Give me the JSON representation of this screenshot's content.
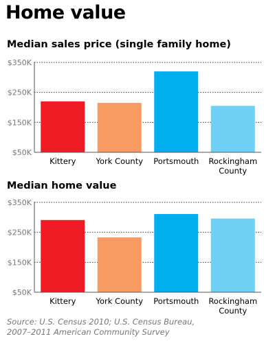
{
  "title": "Home value",
  "source": {
    "line1": "Source: U.S. Census 2010; U.S. Census Bureau,",
    "line2": "2007–2011 American Community Survey"
  },
  "chart_data": [
    {
      "type": "bar",
      "title": "Median sales price (single family home)",
      "categories": [
        [
          "Kittery"
        ],
        [
          "York County"
        ],
        [
          "Portsmouth"
        ],
        [
          "Rockingham",
          "County"
        ]
      ],
      "values": [
        220,
        215,
        320,
        205
      ],
      "colors": [
        "#ee1c25",
        "#f89a63",
        "#00aeef",
        "#70cff5"
      ],
      "ylim": [
        50,
        350
      ],
      "yticks": [
        50,
        150,
        250,
        350
      ],
      "ytick_labels": [
        "$50K",
        "$150K",
        "$250K",
        "$350K"
      ],
      "grid": true
    },
    {
      "type": "bar",
      "title": "Median home value",
      "categories": [
        [
          "Kittery"
        ],
        [
          "York County"
        ],
        [
          "Portsmouth"
        ],
        [
          "Rockingham",
          "County"
        ]
      ],
      "values": [
        291,
        233,
        311,
        296
      ],
      "colors": [
        "#ee1c25",
        "#f89a63",
        "#00aeef",
        "#70cff5"
      ],
      "ylim": [
        50,
        350
      ],
      "yticks": [
        50,
        150,
        250,
        350
      ],
      "ytick_labels": [
        "$50K",
        "$150K",
        "$250K",
        "$350K"
      ],
      "grid": true
    }
  ]
}
